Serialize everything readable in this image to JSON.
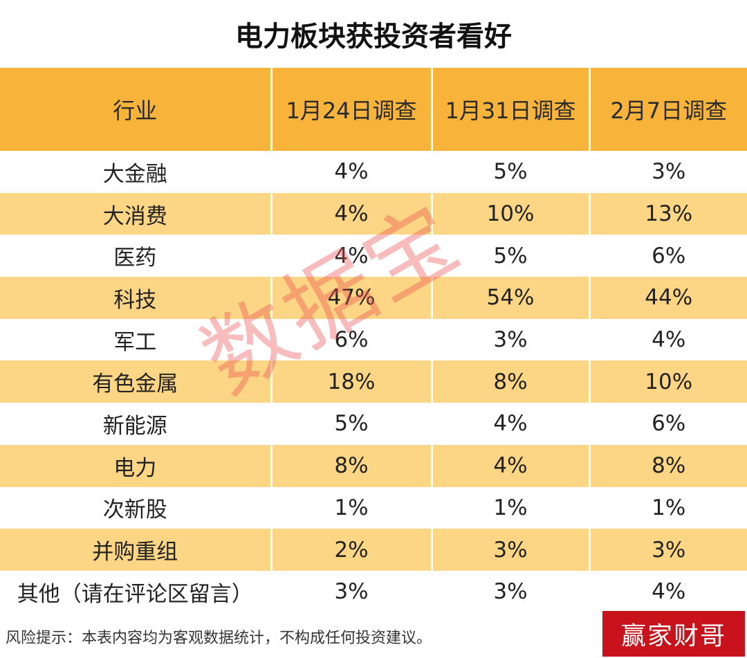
{
  "title": "电力板块获投资者看好",
  "table": {
    "headers": [
      "行业",
      "1月24日调查",
      "1月31日调查",
      "2月7日调查"
    ],
    "rows": [
      [
        "大金融",
        "4%",
        "5%",
        "3%"
      ],
      [
        "大消费",
        "4%",
        "10%",
        "13%"
      ],
      [
        "医药",
        "4%",
        "5%",
        "6%"
      ],
      [
        "科技",
        "47%",
        "54%",
        "44%"
      ],
      [
        "军工",
        "6%",
        "3%",
        "4%"
      ],
      [
        "有色金属",
        "18%",
        "8%",
        "10%"
      ],
      [
        "新能源",
        "5%",
        "4%",
        "6%"
      ],
      [
        "电力",
        "8%",
        "4%",
        "8%"
      ],
      [
        "次新股",
        "1%",
        "1%",
        "1%"
      ],
      [
        "并购重组",
        "2%",
        "3%",
        "3%"
      ],
      [
        "其他（请在评论区留言）",
        "3%",
        "3%",
        "4%"
      ]
    ]
  },
  "watermark": "数据宝",
  "footer": "风险提示：本表内容均为客观数据统计，不构成任何投资建议。",
  "brand": "赢家财哥",
  "colors": {
    "header_bg": "#f8b43a",
    "stripe_bg": "#fcd585",
    "brand_bg": "#c8131c",
    "watermark": "#ec5050"
  }
}
